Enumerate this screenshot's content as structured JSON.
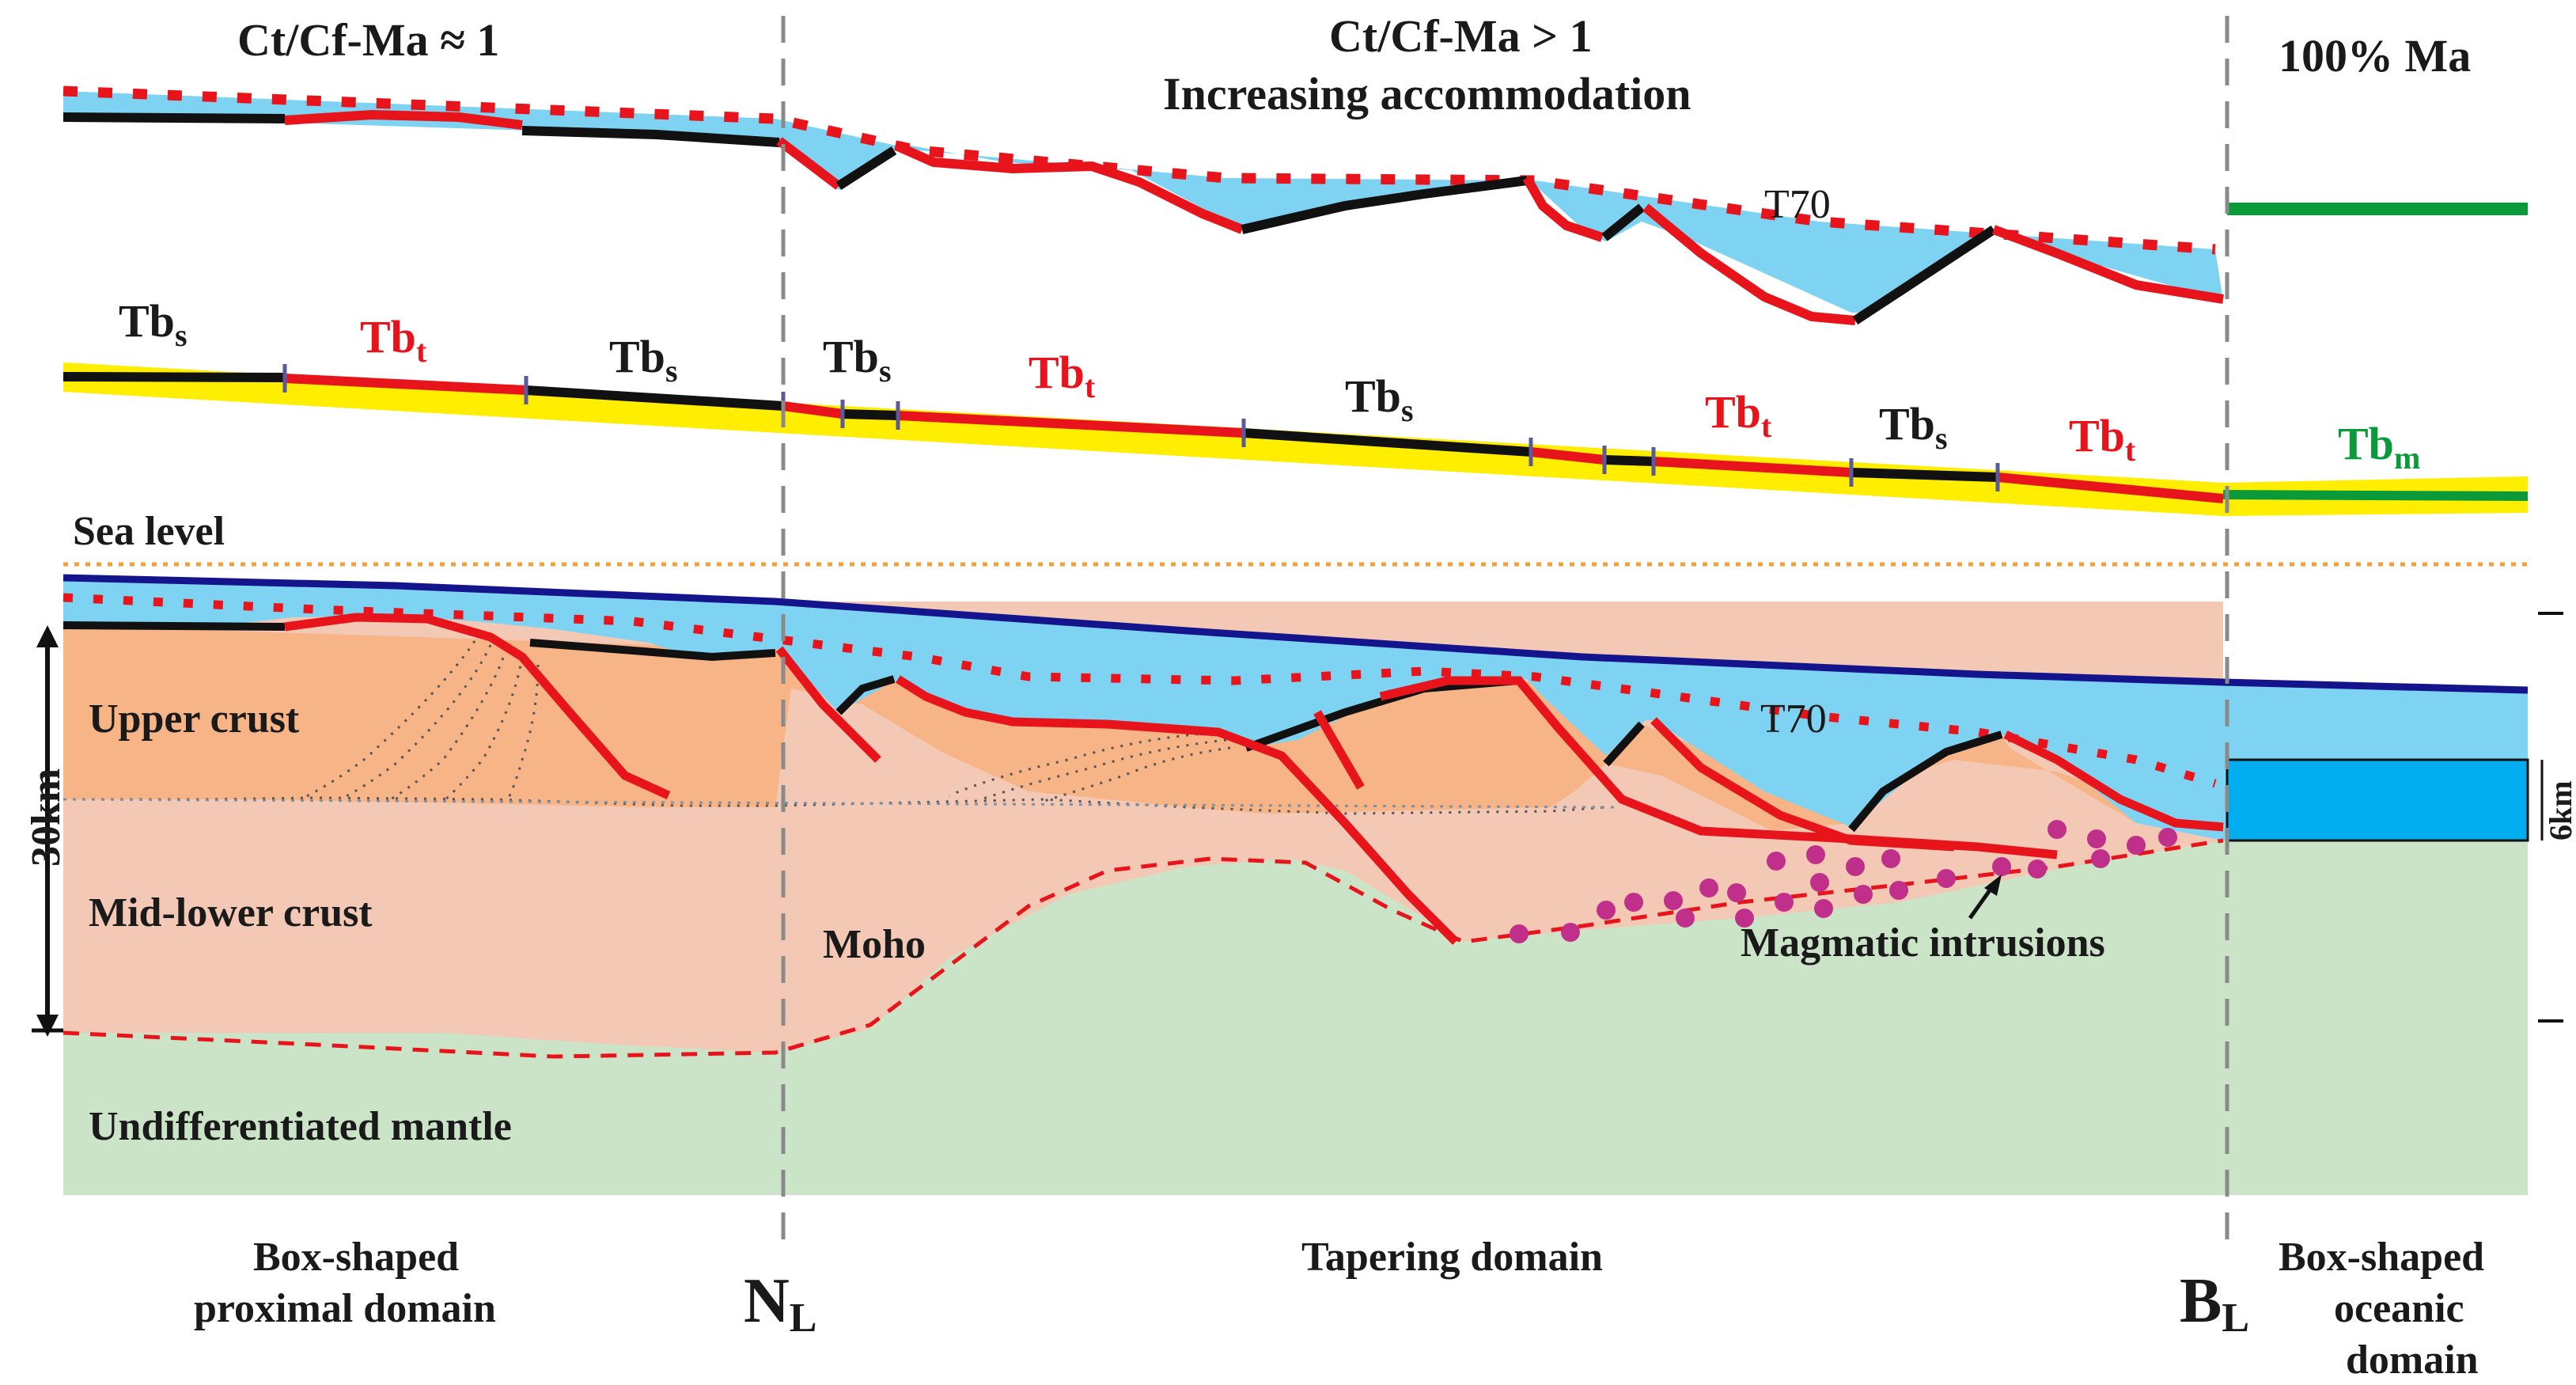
{
  "headers": {
    "left": "Ct/Cf-Ma ≈ 1",
    "center_line1": "Ct/Cf-Ma > 1",
    "center_line2": "Increasing accommodation",
    "right": "100% Ma"
  },
  "horizon": "T70",
  "sea_level": "Sea level",
  "depth_scale": {
    "total": "30km",
    "oceanic": "6km"
  },
  "units": {
    "upper_crust": "Upper crust",
    "mid_lower_crust": "Mid-lower crust",
    "mantle": "Undifferentiated mantle",
    "moho": "Moho",
    "intrusions": "Magmatic intrusions"
  },
  "boundary_labels": [
    {
      "base": "Tb",
      "sub": "s",
      "kind": "sag"
    },
    {
      "base": "Tb",
      "sub": "t",
      "kind": "tectonic"
    },
    {
      "base": "Tb",
      "sub": "s",
      "kind": "sag"
    },
    {
      "base": "Tb",
      "sub": "s",
      "kind": "sag"
    },
    {
      "base": "Tb",
      "sub": "t",
      "kind": "tectonic"
    },
    {
      "base": "Tb",
      "sub": "s",
      "kind": "sag"
    },
    {
      "base": "Tb",
      "sub": "t",
      "kind": "tectonic"
    },
    {
      "base": "Tb",
      "sub": "s",
      "kind": "sag"
    },
    {
      "base": "Tb",
      "sub": "t",
      "kind": "tectonic"
    },
    {
      "base": "Tb",
      "sub": "m",
      "kind": "magmatic"
    }
  ],
  "domains": {
    "proximal_line1": "Box-shaped",
    "proximal_line2": "proximal domain",
    "tapering": "Tapering domain",
    "oceanic_line1": "Box-shaped",
    "oceanic_line2": "oceanic",
    "oceanic_line3": "domain"
  },
  "markers": {
    "necking_base": "N",
    "necking_sub": "L",
    "breakup_base": "B",
    "breakup_sub": "L"
  },
  "colors": {
    "water": "#7fd3f2",
    "upper_crust": "#f7b487",
    "lower_crust": "#f3c8b4",
    "mantle": "#cbe4c8",
    "fault": "#e8141c",
    "seafloor": "#14148c",
    "ocean_layer": "#00aeef",
    "magmatic": "#c0308a",
    "boundary_band": "#ffee00",
    "oceanic_green": "#0a9a3a",
    "sea_level": "#f0a040"
  }
}
